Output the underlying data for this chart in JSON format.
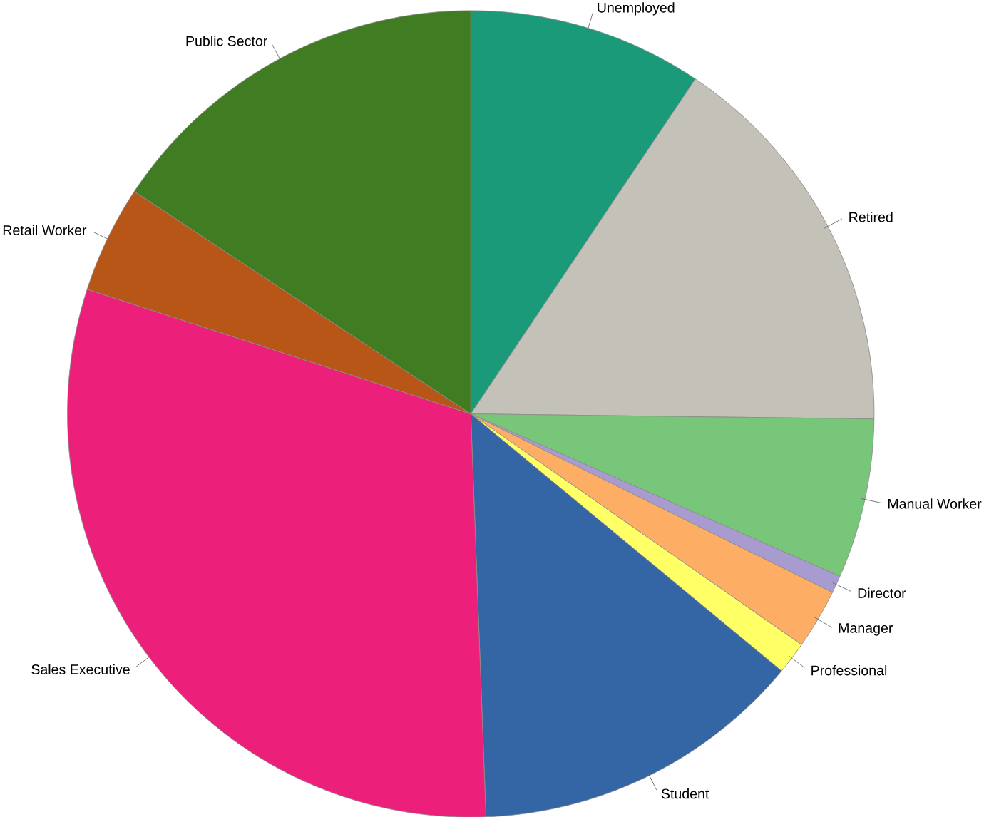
{
  "chart_data": {
    "type": "pie",
    "categories": [
      "Unemployed",
      "Retired",
      "Manual Worker",
      "Director",
      "Manager",
      "Professional",
      "Student",
      "Sales Executive",
      "Retail Worker",
      "Public Sector"
    ],
    "values": [
      9.4,
      15.8,
      6.4,
      0.7,
      2.4,
      1.3,
      13.4,
      30.6,
      4.3,
      15.7
    ],
    "colors": [
      "#1a9a78",
      "#c4c1b9",
      "#78c679",
      "#a89bcf",
      "#fdad64",
      "#ffff66",
      "#3465a4",
      "#ec1f7a",
      "#b85618",
      "#407c22"
    ]
  }
}
